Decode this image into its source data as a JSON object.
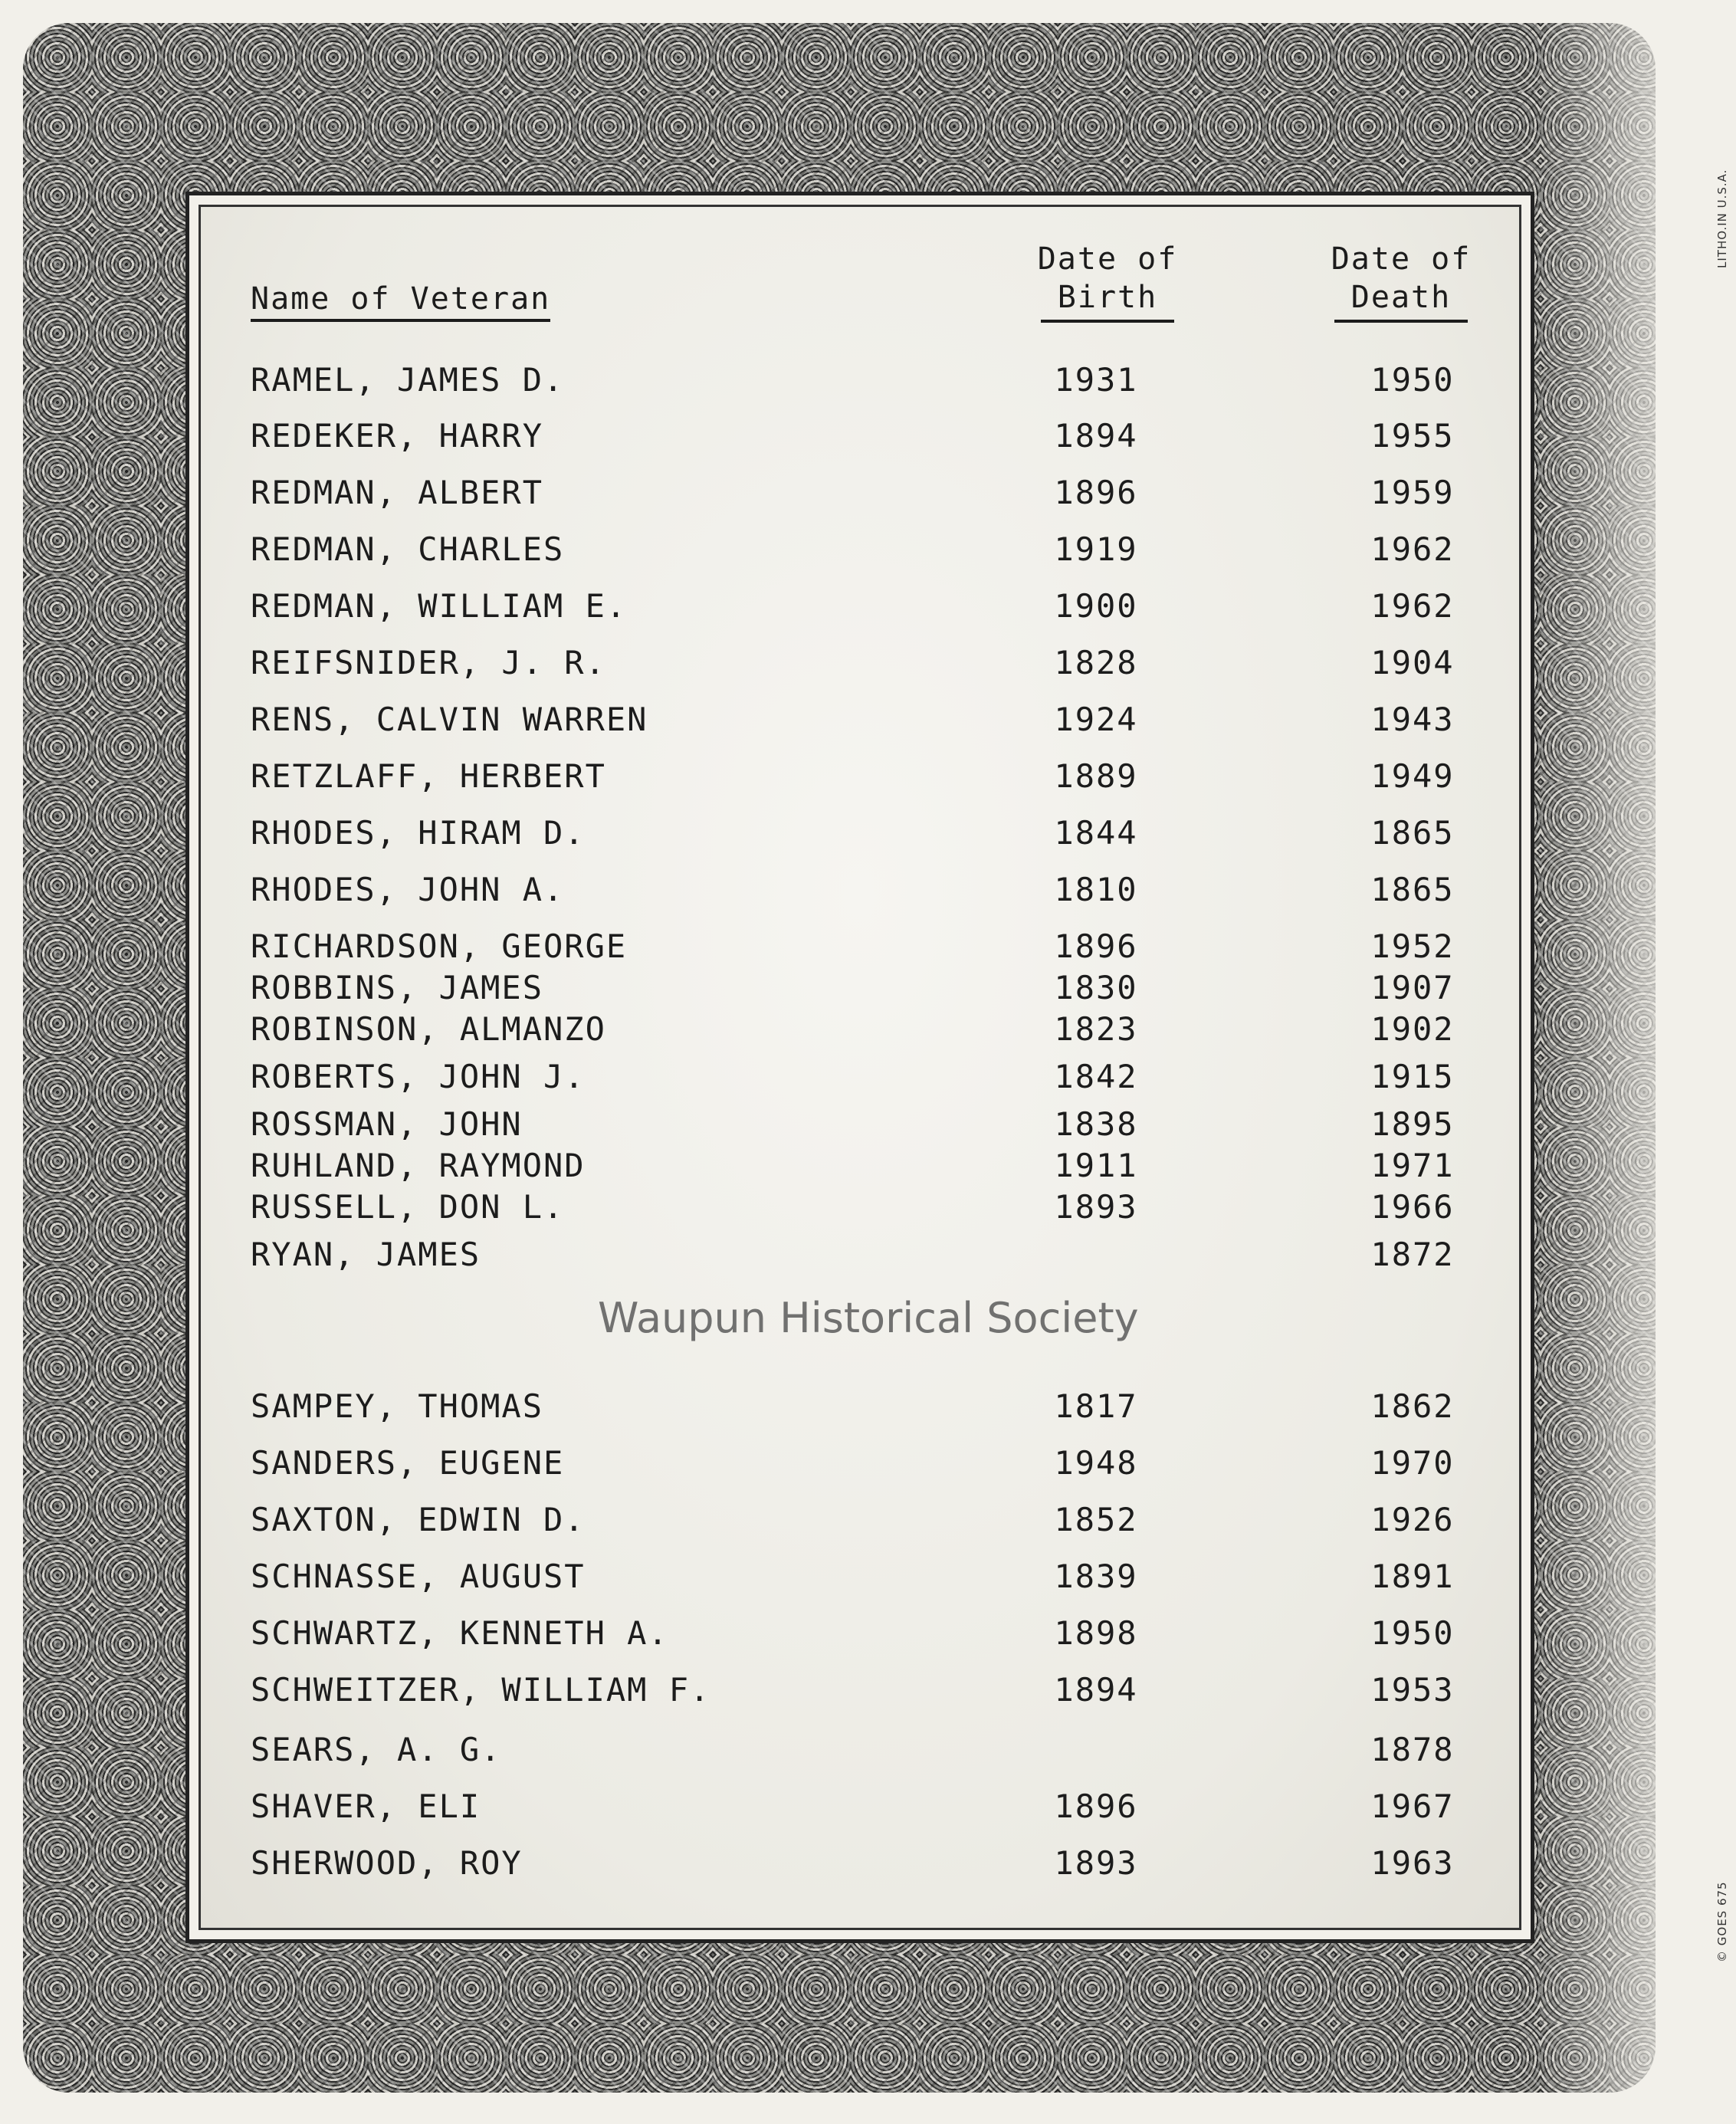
{
  "headers": {
    "name": "Name of Veteran",
    "birth": [
      "Date of",
      "Birth"
    ],
    "death": [
      "Date of",
      "Death"
    ]
  },
  "rows": [
    {
      "name": "RAMEL, JAMES D.",
      "birth": "1931",
      "death": "1950"
    },
    {
      "name": "REDEKER, HARRY",
      "birth": "1894",
      "death": "1955"
    },
    {
      "name": "REDMAN, ALBERT",
      "birth": "1896",
      "death": "1959"
    },
    {
      "name": "REDMAN, CHARLES",
      "birth": "1919",
      "death": "1962"
    },
    {
      "name": "REDMAN, WILLIAM E.",
      "birth": "1900",
      "death": "1962"
    },
    {
      "name": "REIFSNIDER, J. R.",
      "birth": "1828",
      "death": "1904"
    },
    {
      "name": "RENS, CALVIN WARREN",
      "birth": "1924",
      "death": "1943"
    },
    {
      "name": "RETZLAFF, HERBERT",
      "birth": "1889",
      "death": "1949"
    },
    {
      "name": "RHODES, HIRAM D.",
      "birth": "1844",
      "death": "1865"
    },
    {
      "name": "RHODES, JOHN A.",
      "birth": "1810",
      "death": "1865"
    },
    {
      "name": "RICHARDSON, GEORGE",
      "birth": "1896",
      "death": "1952"
    },
    {
      "name": "ROBBINS, JAMES",
      "birth": "1830",
      "death": "1907"
    },
    {
      "name": "ROBINSON, ALMANZO",
      "birth": "1823",
      "death": "1902"
    },
    {
      "name": "ROBERTS, JOHN J.",
      "birth": "1842",
      "death": "1915"
    },
    {
      "name": "ROSSMAN, JOHN",
      "birth": "1838",
      "death": "1895"
    },
    {
      "name": "RUHLAND, RAYMOND",
      "birth": "1911",
      "death": "1971"
    },
    {
      "name": "RUSSELL, DON L.",
      "birth": "1893",
      "death": "1966"
    },
    {
      "name": "RYAN, JAMES",
      "birth": "",
      "death": "1872"
    },
    {
      "name": "SAMPEY, THOMAS",
      "birth": "1817",
      "death": "1862"
    },
    {
      "name": "SANDERS, EUGENE",
      "birth": "1948",
      "death": "1970"
    },
    {
      "name": "SAXTON, EDWIN D.",
      "birth": "1852",
      "death": "1926"
    },
    {
      "name": "SCHNASSE, AUGUST",
      "birth": "1839",
      "death": "1891"
    },
    {
      "name": "SCHWARTZ, KENNETH A.",
      "birth": "1898",
      "death": "1950"
    },
    {
      "name": "SCHWEITZER, WILLIAM F.",
      "birth": "1894",
      "death": "1953"
    },
    {
      "name": "SEARS, A. G.",
      "birth": "",
      "death": "1878"
    },
    {
      "name": "SHAVER, ELI",
      "birth": "1896",
      "death": "1967"
    },
    {
      "name": "SHERWOOD, ROY",
      "birth": "1893",
      "death": "1963"
    }
  ],
  "watermark": "Waupun Historical Society",
  "side_marks": {
    "top": "LITHO.IN U.S.A.",
    "bottom": "© GOES 675"
  }
}
